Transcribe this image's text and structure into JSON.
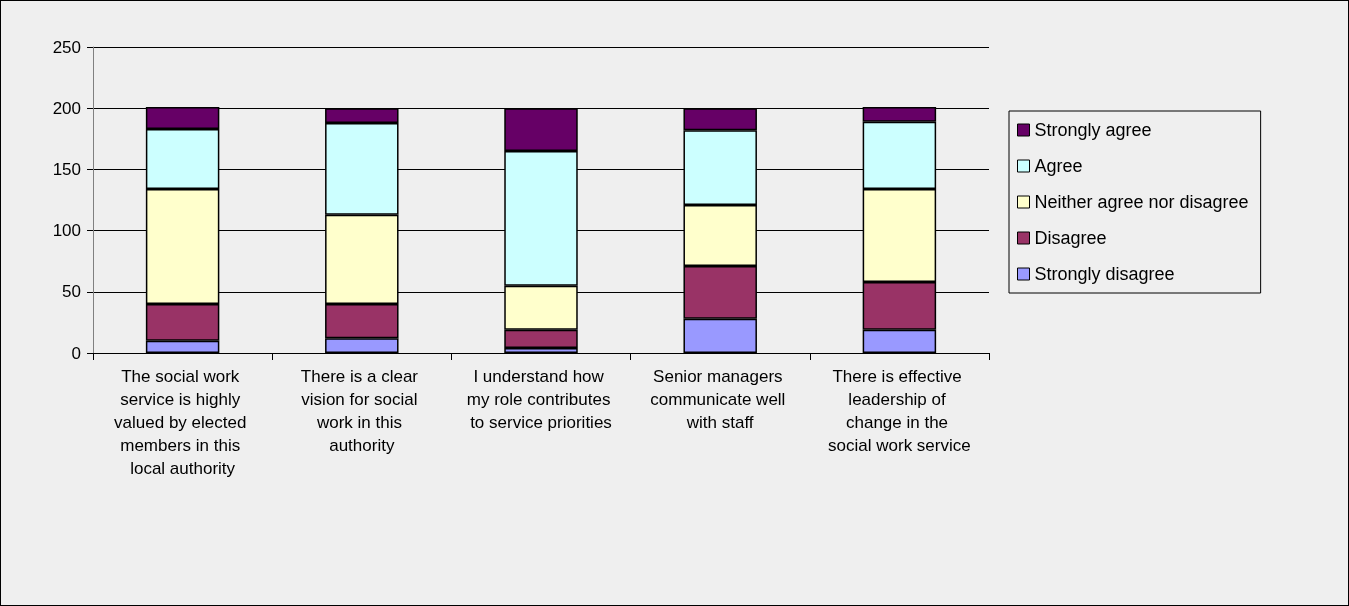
{
  "chart_data": {
    "type": "bar",
    "stacked": true,
    "categories": [
      "The social work service is highly valued by elected members in this local authority",
      "There is a clear vision for social work in this authority",
      "I understand how my role contributes to service priorities",
      "Senior managers communicate well with staff",
      "There is effective leadership of change in the social work service"
    ],
    "series": [
      {
        "name": "Strongly disagree",
        "color": "#9999ff",
        "values": [
          10,
          12,
          4,
          28,
          19
        ]
      },
      {
        "name": "Disagree",
        "color": "#993366",
        "values": [
          30,
          28,
          15,
          43,
          39
        ]
      },
      {
        "name": "Neither agree nor disagree",
        "color": "#ffffcc",
        "values": [
          94,
          73,
          36,
          50,
          76
        ]
      },
      {
        "name": "Agree",
        "color": "#ccffff",
        "values": [
          49,
          75,
          110,
          61,
          55
        ]
      },
      {
        "name": "Strongly agree",
        "color": "#660066",
        "values": [
          18,
          12,
          35,
          18,
          12
        ]
      }
    ],
    "ylim": [
      0,
      250
    ],
    "yticks": [
      0,
      50,
      100,
      150,
      200,
      250
    ],
    "grid": "y",
    "legend": "right"
  }
}
